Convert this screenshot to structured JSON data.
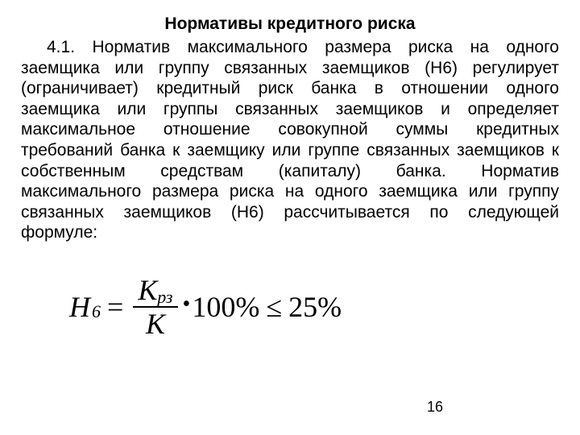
{
  "title": "Нормативы кредитного риска",
  "paragraph": "4.1. Норматив максимального размера риска на одного заемщика или группу связанных заемщиков (Н6) регулирует (ограничивает) кредитный риск банка в отношении одного заемщика или группы связанных заемщиков и определяет максимальное отношение совокупной суммы кредитных требований банка к заемщику или группе связанных заемщиков к собственным средствам (капиталу) банка. Норматив максимального размера риска на одного заемщика или группу связанных заемщиков (Н6) рассчитывается по следующей формуле:",
  "formula": {
    "lhs_var": "Н",
    "lhs_sub": "6",
    "eq": "=",
    "frac_top_var": "К",
    "frac_top_sub": "рз",
    "frac_bot_var": "К",
    "times_100": "100%",
    "leq": "≤",
    "rhs": "25%"
  },
  "page_number": "16",
  "style": {
    "background_color": "#ffffff",
    "text_color": "#000000",
    "title_fontsize": 21,
    "body_fontsize": 21,
    "formula_fontsize": 36,
    "formula_sub_fontsize": 22,
    "page_number_fontsize": 18,
    "font_family_body": "Arial",
    "font_family_formula": "Times New Roman"
  }
}
